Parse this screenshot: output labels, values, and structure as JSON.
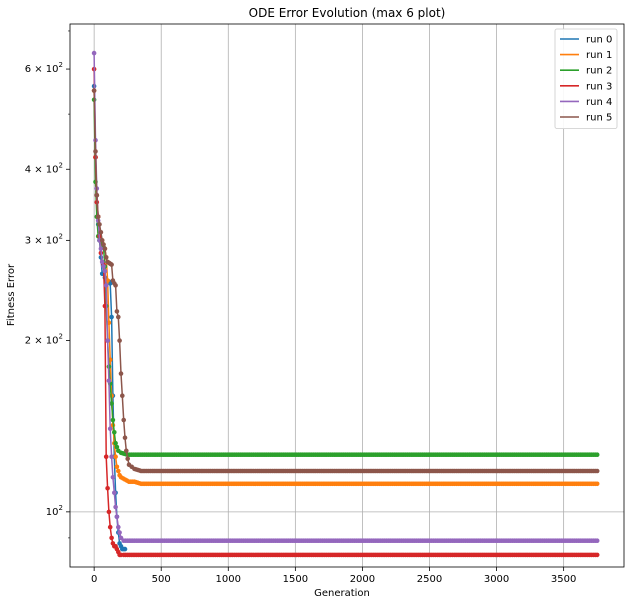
{
  "chart_data": {
    "type": "line",
    "title": "ODE Error Evolution (max 6 plot)",
    "xlabel": "Generation",
    "ylabel": "Fitness Error",
    "yscale": "log",
    "xlim": [
      -180,
      3950
    ],
    "ylim": [
      80,
      720
    ],
    "xticks": [
      0,
      500,
      1000,
      1500,
      2000,
      2500,
      3000,
      3500
    ],
    "xtick_labels": [
      "0",
      "500",
      "1000",
      "1500",
      "2000",
      "2500",
      "3000",
      "3500"
    ],
    "yticks": [
      {
        "value": 100,
        "base": "10",
        "exp": "2"
      },
      {
        "value": 200,
        "base": "2 × 10",
        "exp": "2"
      },
      {
        "value": 300,
        "base": "3 × 10",
        "exp": "2"
      },
      {
        "value": 400,
        "base": "4 × 10",
        "exp": "2"
      },
      {
        "value": 600,
        "base": "6 × 10",
        "exp": "2"
      }
    ],
    "grid": true,
    "marker": "circle",
    "legend_position": "top-right",
    "series": [
      {
        "name": "run 0",
        "color": "#1f77b4",
        "points": [
          [
            0,
            560
          ],
          [
            10,
            420
          ],
          [
            20,
            360
          ],
          [
            30,
            320
          ],
          [
            40,
            300
          ],
          [
            50,
            280
          ],
          [
            60,
            262
          ],
          [
            70,
            262
          ],
          [
            80,
            258
          ],
          [
            90,
            256
          ],
          [
            100,
            254
          ],
          [
            110,
            254
          ],
          [
            120,
            252
          ],
          [
            130,
            220
          ],
          [
            140,
            160
          ],
          [
            150,
            125
          ],
          [
            160,
            108
          ],
          [
            170,
            98
          ],
          [
            180,
            92
          ],
          [
            190,
            88
          ],
          [
            200,
            87
          ],
          [
            210,
            86
          ],
          [
            220,
            86
          ],
          [
            230,
            86
          ]
        ]
      },
      {
        "name": "run 1",
        "color": "#ff7f0e",
        "points": [
          [
            0,
            550
          ],
          [
            10,
            420
          ],
          [
            20,
            360
          ],
          [
            30,
            330
          ],
          [
            40,
            310
          ],
          [
            50,
            300
          ],
          [
            60,
            300
          ],
          [
            70,
            295
          ],
          [
            80,
            290
          ],
          [
            90,
            280
          ],
          [
            100,
            255
          ],
          [
            110,
            215
          ],
          [
            120,
            185
          ],
          [
            130,
            160
          ],
          [
            140,
            142
          ],
          [
            150,
            132
          ],
          [
            160,
            125
          ],
          [
            170,
            120
          ],
          [
            180,
            118
          ],
          [
            190,
            116
          ],
          [
            200,
            115
          ],
          [
            230,
            114
          ],
          [
            260,
            113
          ],
          [
            300,
            113
          ],
          [
            350,
            112
          ],
          [
            3750,
            112
          ]
        ]
      },
      {
        "name": "run 2",
        "color": "#2ca02c",
        "points": [
          [
            0,
            530
          ],
          [
            10,
            380
          ],
          [
            20,
            330
          ],
          [
            30,
            305
          ],
          [
            40,
            300
          ],
          [
            50,
            300
          ],
          [
            60,
            296
          ],
          [
            70,
            292
          ],
          [
            80,
            270
          ],
          [
            90,
            230
          ],
          [
            100,
            200
          ],
          [
            110,
            180
          ],
          [
            120,
            168
          ],
          [
            130,
            155
          ],
          [
            140,
            145
          ],
          [
            150,
            138
          ],
          [
            160,
            132
          ],
          [
            170,
            130
          ],
          [
            180,
            128
          ],
          [
            200,
            127
          ],
          [
            250,
            126
          ],
          [
            3750,
            126
          ]
        ]
      },
      {
        "name": "run 3",
        "color": "#d62728",
        "points": [
          [
            0,
            600
          ],
          [
            10,
            420
          ],
          [
            20,
            350
          ],
          [
            30,
            330
          ],
          [
            40,
            305
          ],
          [
            50,
            285
          ],
          [
            60,
            275
          ],
          [
            70,
            272
          ],
          [
            80,
            230
          ],
          [
            90,
            125
          ],
          [
            100,
            110
          ],
          [
            110,
            100
          ],
          [
            120,
            94
          ],
          [
            130,
            90
          ],
          [
            140,
            88
          ],
          [
            150,
            87
          ],
          [
            160,
            87
          ],
          [
            170,
            86
          ],
          [
            180,
            85
          ],
          [
            190,
            84
          ],
          [
            200,
            84
          ],
          [
            220,
            84
          ],
          [
            3750,
            84
          ]
        ]
      },
      {
        "name": "run 4",
        "color": "#9467bd",
        "points": [
          [
            0,
            640
          ],
          [
            10,
            450
          ],
          [
            20,
            370
          ],
          [
            30,
            325
          ],
          [
            40,
            300
          ],
          [
            50,
            290
          ],
          [
            60,
            275
          ],
          [
            70,
            270
          ],
          [
            80,
            265
          ],
          [
            90,
            250
          ],
          [
            100,
            200
          ],
          [
            110,
            170
          ],
          [
            120,
            140
          ],
          [
            130,
            125
          ],
          [
            140,
            115
          ],
          [
            150,
            108
          ],
          [
            160,
            102
          ],
          [
            170,
            98
          ],
          [
            180,
            94
          ],
          [
            190,
            92
          ],
          [
            200,
            90
          ],
          [
            220,
            89
          ],
          [
            250,
            89
          ],
          [
            300,
            89
          ],
          [
            3750,
            89
          ]
        ]
      },
      {
        "name": "run 5",
        "color": "#8c564b",
        "points": [
          [
            0,
            550
          ],
          [
            10,
            430
          ],
          [
            20,
            360
          ],
          [
            30,
            330
          ],
          [
            40,
            320
          ],
          [
            50,
            310
          ],
          [
            60,
            300
          ],
          [
            70,
            295
          ],
          [
            80,
            290
          ],
          [
            90,
            280
          ],
          [
            100,
            275
          ],
          [
            110,
            274
          ],
          [
            120,
            273
          ],
          [
            130,
            272
          ],
          [
            140,
            255
          ],
          [
            150,
            252
          ],
          [
            160,
            250
          ],
          [
            170,
            225
          ],
          [
            180,
            220
          ],
          [
            190,
            200
          ],
          [
            200,
            175
          ],
          [
            210,
            160
          ],
          [
            220,
            145
          ],
          [
            230,
            135
          ],
          [
            240,
            128
          ],
          [
            250,
            124
          ],
          [
            260,
            121
          ],
          [
            280,
            120
          ],
          [
            300,
            119
          ],
          [
            350,
            118
          ],
          [
            3750,
            118
          ]
        ]
      }
    ]
  }
}
